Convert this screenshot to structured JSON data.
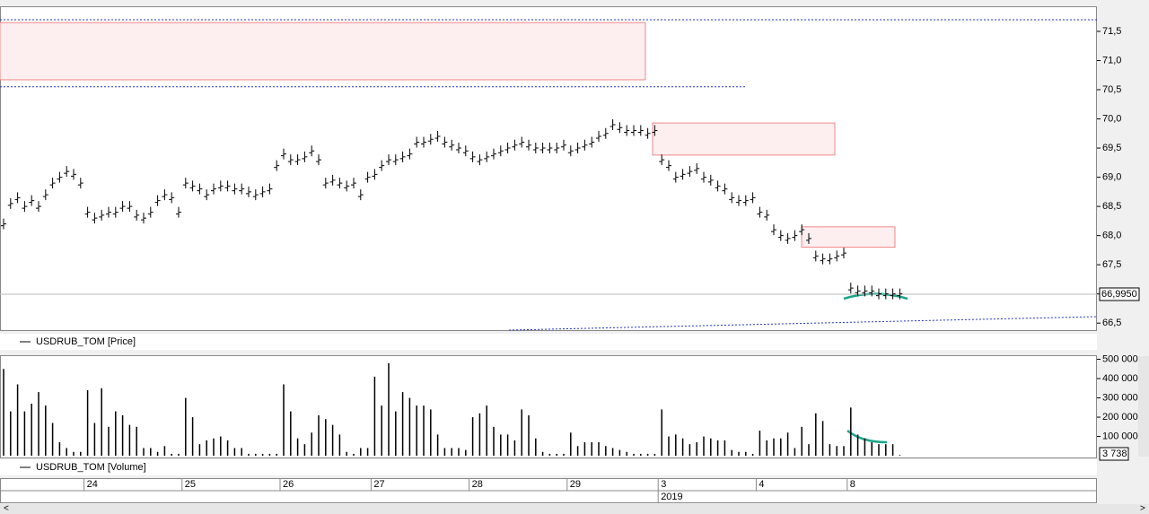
{
  "chart_data": [
    {
      "type": "price",
      "legend": "USDRUB_TOM [Price]",
      "ylim": [
        66.38,
        71.93
      ],
      "yticks": [
        {
          "value": 71.5,
          "label": "71,5"
        },
        {
          "value": 71.0,
          "label": "71,0"
        },
        {
          "value": 70.5,
          "label": "70,5"
        },
        {
          "value": 70.0,
          "label": "70,0"
        },
        {
          "value": 69.5,
          "label": "69,5"
        },
        {
          "value": 69.0,
          "label": "69,0"
        },
        {
          "value": 68.5,
          "label": "68,5"
        },
        {
          "value": 68.0,
          "label": "68,0"
        },
        {
          "value": 67.5,
          "label": "67,5"
        },
        {
          "value": 67.0,
          "label": "67,0"
        },
        {
          "value": 66.5,
          "label": "66,5"
        }
      ],
      "last_price": {
        "value": 66.995,
        "label": "66,9950"
      },
      "levels": [
        71.7,
        70.55
      ],
      "zones": [
        {
          "high": 71.65,
          "low": 70.67
        },
        {
          "high": 69.93,
          "low": 69.38
        },
        {
          "high": 68.15,
          "low": 67.8
        }
      ],
      "color": "#000000",
      "values": [
        68.2,
        68.55,
        68.65,
        68.5,
        68.6,
        68.5,
        68.7,
        68.9,
        69.0,
        69.1,
        69.05,
        68.9,
        68.4,
        68.3,
        68.35,
        68.4,
        68.4,
        68.5,
        68.5,
        68.35,
        68.3,
        68.4,
        68.6,
        68.7,
        68.65,
        68.4,
        68.9,
        68.85,
        68.8,
        68.7,
        68.8,
        68.85,
        68.85,
        68.8,
        68.8,
        68.75,
        68.7,
        68.75,
        68.8,
        69.2,
        69.4,
        69.3,
        69.3,
        69.35,
        69.45,
        69.3,
        68.9,
        68.95,
        68.9,
        68.85,
        68.9,
        68.7,
        69.0,
        69.05,
        69.2,
        69.3,
        69.3,
        69.35,
        69.4,
        69.6,
        69.6,
        69.65,
        69.7,
        69.6,
        69.55,
        69.5,
        69.45,
        69.35,
        69.3,
        69.35,
        69.4,
        69.45,
        69.5,
        69.55,
        69.6,
        69.55,
        69.5,
        69.5,
        69.5,
        69.5,
        69.55,
        69.45,
        69.5,
        69.55,
        69.6,
        69.7,
        69.75,
        69.9,
        69.85,
        69.8,
        69.8,
        69.8,
        69.75,
        69.8,
        69.3,
        69.2,
        69.0,
        69.05,
        69.1,
        69.15,
        69.0,
        68.95,
        68.85,
        68.8,
        68.65,
        68.6,
        68.6,
        68.65,
        68.4,
        68.35,
        68.1,
        68.0,
        67.95,
        68.0,
        68.1,
        67.95,
        67.65,
        67.6,
        67.6,
        67.65,
        67.7,
        67.1,
        67.05,
        67.05,
        67.05,
        67.0,
        67.0,
        67.0,
        67.0
      ]
    },
    {
      "type": "bar",
      "legend": "USDRUB_TOM [Volume]",
      "ylim": [
        -9000,
        521000
      ],
      "yticks": [
        {
          "value": 500000,
          "label": "500 000"
        },
        {
          "value": 400000,
          "label": "400 000"
        },
        {
          "value": 300000,
          "label": "300 000"
        },
        {
          "value": 200000,
          "label": "200 000"
        },
        {
          "value": 100000,
          "label": "100 000"
        }
      ],
      "last_label": "3 738",
      "color": "#000000",
      "values": [
        450000,
        230000,
        370000,
        230000,
        270000,
        330000,
        260000,
        170000,
        70000,
        40000,
        20000,
        20000,
        340000,
        170000,
        350000,
        150000,
        230000,
        210000,
        160000,
        150000,
        40000,
        40000,
        20000,
        50000,
        10000,
        10000,
        300000,
        200000,
        60000,
        80000,
        90000,
        100000,
        80000,
        40000,
        40000,
        10000,
        10000,
        10000,
        10000,
        10000,
        370000,
        230000,
        90000,
        60000,
        120000,
        210000,
        190000,
        160000,
        110000,
        20000,
        10000,
        40000,
        40000,
        410000,
        260000,
        480000,
        230000,
        330000,
        300000,
        260000,
        260000,
        240000,
        110000,
        40000,
        40000,
        40000,
        30000,
        200000,
        220000,
        260000,
        150000,
        110000,
        110000,
        80000,
        240000,
        210000,
        90000,
        20000,
        10000,
        10000,
        10000,
        120000,
        50000,
        70000,
        70000,
        70000,
        50000,
        40000,
        30000,
        20000,
        10000,
        10000,
        10000,
        10000,
        240000,
        100000,
        110000,
        90000,
        60000,
        70000,
        100000,
        90000,
        80000,
        80000,
        30000,
        20000,
        20000,
        10000,
        130000,
        80000,
        90000,
        90000,
        120000,
        40000,
        150000,
        60000,
        220000,
        180000,
        60000,
        50000,
        50000,
        250000,
        110000,
        90000,
        70000,
        60000,
        60000,
        60000,
        3738
      ]
    }
  ],
  "date_axis": {
    "year": "2019",
    "categories": [
      null,
      null,
      null,
      null,
      null,
      null,
      null,
      null,
      null,
      null,
      null,
      null,
      "24",
      null,
      null,
      null,
      null,
      null,
      null,
      null,
      null,
      null,
      null,
      null,
      null,
      null,
      "25",
      null,
      null,
      null,
      null,
      null,
      null,
      null,
      null,
      null,
      null,
      null,
      null,
      null,
      "26",
      null,
      null,
      null,
      null,
      null,
      null,
      null,
      null,
      null,
      null,
      null,
      null,
      "27",
      null,
      null,
      null,
      null,
      null,
      null,
      null,
      null,
      null,
      null,
      null,
      null,
      null,
      "28",
      null,
      null,
      null,
      null,
      null,
      null,
      null,
      null,
      null,
      null,
      null,
      null,
      null,
      "29",
      null,
      null,
      null,
      null,
      null,
      null,
      null,
      null,
      null,
      null,
      null,
      null,
      "3",
      null,
      null,
      null,
      null,
      null,
      null,
      null,
      null,
      null,
      null,
      null,
      null,
      null,
      "4",
      null,
      null,
      null,
      null,
      null,
      null,
      null,
      null,
      null,
      null,
      null,
      null,
      "8",
      null,
      null,
      null,
      null,
      null,
      null,
      null
    ]
  }
}
